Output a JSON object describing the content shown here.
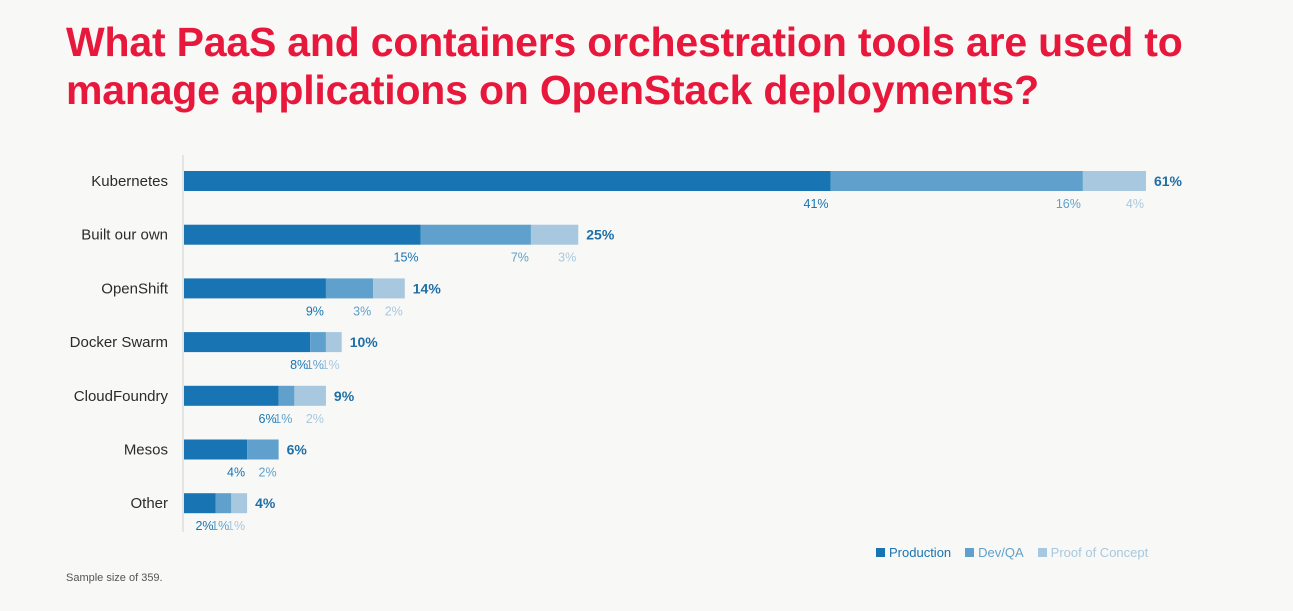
{
  "title": "What PaaS and containers orchestration tools are used to manage applications on OpenStack deployments?",
  "note": "Sample size of 359.",
  "colors": {
    "production": "#1874b2",
    "devqa": "#5fa1cc",
    "poc": "#a7c8df",
    "total": "#1f6fa6"
  },
  "legend": [
    "Production",
    "Dev/QA",
    "Proof of Concept"
  ],
  "chart_data": {
    "type": "bar",
    "orientation": "horizontal",
    "stacked": true,
    "categories": [
      "Kubernetes",
      "Built our own",
      "OpenShift",
      "Docker Swarm",
      "CloudFoundry",
      "Mesos",
      "Other"
    ],
    "series": [
      {
        "name": "Production",
        "values": [
          41,
          15,
          9,
          8,
          6,
          4,
          2
        ]
      },
      {
        "name": "Dev/QA",
        "values": [
          16,
          7,
          3,
          1,
          1,
          2,
          1
        ]
      },
      {
        "name": "Proof of Concept",
        "values": [
          4,
          3,
          2,
          1,
          2,
          null,
          1
        ]
      }
    ],
    "totals": [
      "61%",
      "25%",
      "14%",
      "10%",
      "9%",
      "6%",
      "4%"
    ],
    "value_suffix": "%",
    "legend_position": "bottom-right"
  }
}
